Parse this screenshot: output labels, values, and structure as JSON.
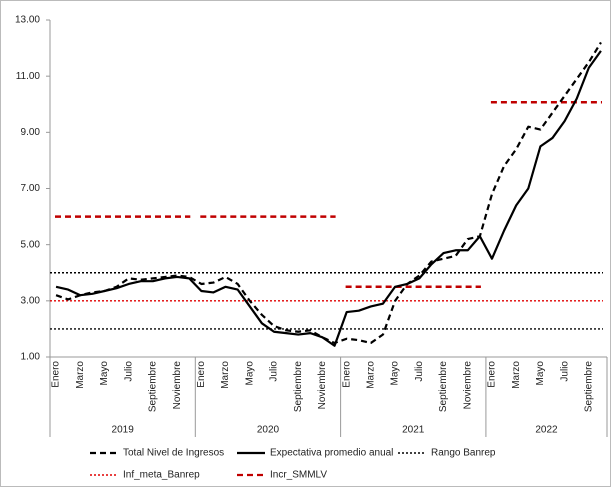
{
  "chart_data": {
    "type": "line",
    "categories": [
      "Enero",
      null,
      "Marzo",
      null,
      "Mayo",
      null,
      "Julio",
      null,
      "Septiembre",
      null,
      "Noviembre",
      null,
      "Enero",
      null,
      "Marzo",
      null,
      "Mayo",
      null,
      "Julio",
      null,
      "Septiembre",
      null,
      "Noviembre",
      null,
      "Enero",
      null,
      "Marzo",
      null,
      "Mayo",
      null,
      "Julio",
      null,
      "Septiembre",
      null,
      "Noviembre",
      null,
      "Enero",
      null,
      "Marzo",
      null,
      "Mayo",
      null,
      "Julio",
      null,
      "Septiembre",
      null
    ],
    "year_groups": [
      "2019",
      "2020",
      "2021",
      "2022"
    ],
    "ylim": [
      1,
      13
    ],
    "yticks": [
      {
        "value": 1,
        "label": "1.00"
      },
      {
        "value": 3,
        "label": "3.00"
      },
      {
        "value": 5,
        "label": "5.00"
      },
      {
        "value": 7,
        "label": "7.00"
      },
      {
        "value": 9,
        "label": "9.00"
      },
      {
        "value": 11,
        "label": "11.00"
      },
      {
        "value": 13,
        "label": "13.00"
      }
    ],
    "series": [
      {
        "name": "Total Nivel de Ingresos",
        "color": "#000000",
        "style": "dashed",
        "values": [
          3.2,
          3.05,
          3.2,
          3.3,
          3.35,
          3.5,
          3.8,
          3.75,
          3.8,
          3.85,
          3.9,
          3.85,
          3.6,
          3.65,
          3.85,
          3.6,
          3.0,
          2.5,
          2.1,
          1.95,
          1.9,
          1.95,
          1.7,
          1.5,
          1.65,
          1.6,
          1.5,
          1.8,
          3.0,
          3.6,
          3.9,
          4.4,
          4.5,
          4.6,
          5.2,
          5.3,
          6.8,
          7.8,
          8.4,
          9.2,
          9.1,
          9.7,
          10.3,
          10.9,
          11.5,
          12.2
        ]
      },
      {
        "name": "Expectativa promedio anual",
        "color": "#000000",
        "style": "solid",
        "values": [
          3.5,
          3.4,
          3.2,
          3.25,
          3.35,
          3.45,
          3.6,
          3.7,
          3.7,
          3.8,
          3.85,
          3.8,
          3.35,
          3.3,
          3.5,
          3.4,
          2.8,
          2.2,
          1.9,
          1.85,
          1.8,
          1.85,
          1.7,
          1.4,
          2.6,
          2.65,
          2.8,
          2.9,
          3.5,
          3.6,
          3.8,
          4.3,
          4.7,
          4.8,
          4.8,
          5.3,
          4.5,
          5.5,
          6.4,
          7.0,
          8.5,
          8.8,
          9.4,
          10.2,
          11.3,
          11.9
        ]
      }
    ],
    "reference_lines": [
      {
        "name": "Rango Banrep",
        "color": "#000000",
        "style": "dotted",
        "values": [
          2,
          4
        ]
      },
      {
        "name": "Inf_meta_Banrep",
        "color": "#e00000",
        "style": "dotted",
        "values": [
          3
        ]
      }
    ],
    "year_series": {
      "name": "Incr_SMMLV",
      "color": "#c00000",
      "style": "dashed",
      "values": [
        6,
        6,
        3.5,
        10.07
      ]
    }
  }
}
